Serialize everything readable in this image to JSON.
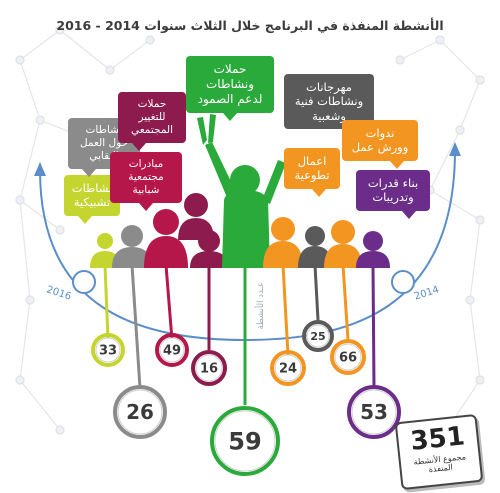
{
  "title": "الأنشطة المنفذة في البرنامج خلال الثلاث سنوات 2014 - 2016",
  "years": {
    "left": "2016",
    "right": "2014"
  },
  "vertical_caption": "عـدد الأنشطة",
  "total": {
    "value": "351",
    "label": "مجموع الأنشطة المنفذة"
  },
  "colors": {
    "yellow_green": "#c4d52f",
    "gray": "#8b8b8b",
    "crimson": "#b5174a",
    "maroon": "#8e1b4d",
    "green": "#2aaa3a",
    "orange": "#f39521",
    "dark_gray": "#5a5a5a",
    "purple": "#6b2c8a",
    "axis_blue": "#5b8ec9"
  },
  "categories": [
    {
      "id": "networking",
      "label": "نشاطات تشبيكية",
      "value": "33",
      "color": "#c4d52f"
    },
    {
      "id": "union",
      "label": "نشاطات حول العمل النقابي",
      "value": "26",
      "color": "#8b8b8b"
    },
    {
      "id": "youth",
      "label": "مبادرات مجتمعية شبابية",
      "value": "49",
      "color": "#b5174a"
    },
    {
      "id": "change",
      "label": "حملات للتغيير المجتمعي",
      "value": "16",
      "color": "#8e1b4d"
    },
    {
      "id": "steadfast",
      "label": "حملات ونشاطات لدعم الصمود",
      "value": "59",
      "color": "#2aaa3a"
    },
    {
      "id": "volunteer",
      "label": "اعمال تطوعية",
      "value": "24",
      "color": "#f39521"
    },
    {
      "id": "festivals",
      "label": "مهرجانات ونشاطات فنية وشعبية",
      "value": "25",
      "color": "#5a5a5a"
    },
    {
      "id": "seminars",
      "label": "ندوات وورش عمل",
      "value": "66",
      "color": "#f39521"
    },
    {
      "id": "capacity",
      "label": "بناء قدرات وتدريبات",
      "value": "53",
      "color": "#6b2c8a"
    }
  ]
}
